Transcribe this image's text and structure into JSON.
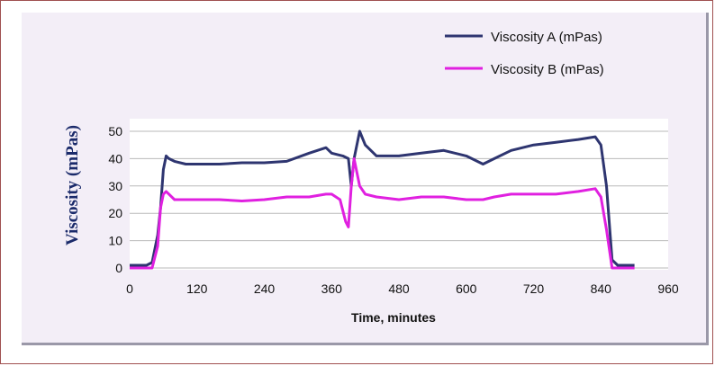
{
  "chart_data": {
    "type": "line",
    "xlabel": "Time, minutes",
    "ylabel": "Viscosity (mPas)",
    "xlim": [
      0,
      960
    ],
    "ylim": [
      0,
      50
    ],
    "xticks": [
      0,
      120,
      240,
      360,
      480,
      600,
      720,
      840,
      960
    ],
    "yticks": [
      0,
      10,
      20,
      30,
      40,
      50
    ],
    "grid": "horizontal",
    "legend_position": "top-right",
    "series": [
      {
        "name": "Viscosity A (mPas)",
        "color": "#2e3570",
        "x": [
          0,
          30,
          40,
          50,
          55,
          60,
          65,
          70,
          80,
          100,
          120,
          160,
          200,
          240,
          280,
          320,
          350,
          360,
          380,
          390,
          395,
          400,
          410,
          420,
          440,
          480,
          520,
          560,
          600,
          630,
          650,
          680,
          720,
          760,
          800,
          830,
          840,
          850,
          860,
          870,
          880,
          900
        ],
        "y": [
          1,
          1,
          2,
          12,
          22,
          36,
          41,
          40,
          39,
          38,
          38,
          38,
          38.5,
          38.5,
          39,
          42,
          44,
          42,
          41,
          40,
          30,
          40,
          50,
          45,
          41,
          41,
          42,
          43,
          41,
          38,
          40,
          43,
          45,
          46,
          47,
          48,
          45,
          30,
          3,
          1,
          1,
          1
        ]
      },
      {
        "name": "Viscosity B (mPas)",
        "color": "#e020e0",
        "x": [
          0,
          30,
          40,
          50,
          55,
          60,
          65,
          70,
          80,
          100,
          120,
          160,
          200,
          240,
          280,
          320,
          350,
          360,
          375,
          385,
          390,
          395,
          400,
          410,
          420,
          440,
          480,
          520,
          560,
          600,
          630,
          650,
          680,
          720,
          760,
          800,
          830,
          840,
          850,
          860,
          870,
          880,
          900
        ],
        "y": [
          0,
          0,
          0,
          8,
          22,
          27,
          28,
          27,
          25,
          25,
          25,
          25,
          24.5,
          25,
          26,
          26,
          27,
          27,
          25,
          17,
          15,
          30,
          40,
          30,
          27,
          26,
          25,
          26,
          26,
          25,
          25,
          26,
          27,
          27,
          27,
          28,
          29,
          26,
          14,
          0,
          0,
          0,
          0
        ]
      }
    ]
  }
}
